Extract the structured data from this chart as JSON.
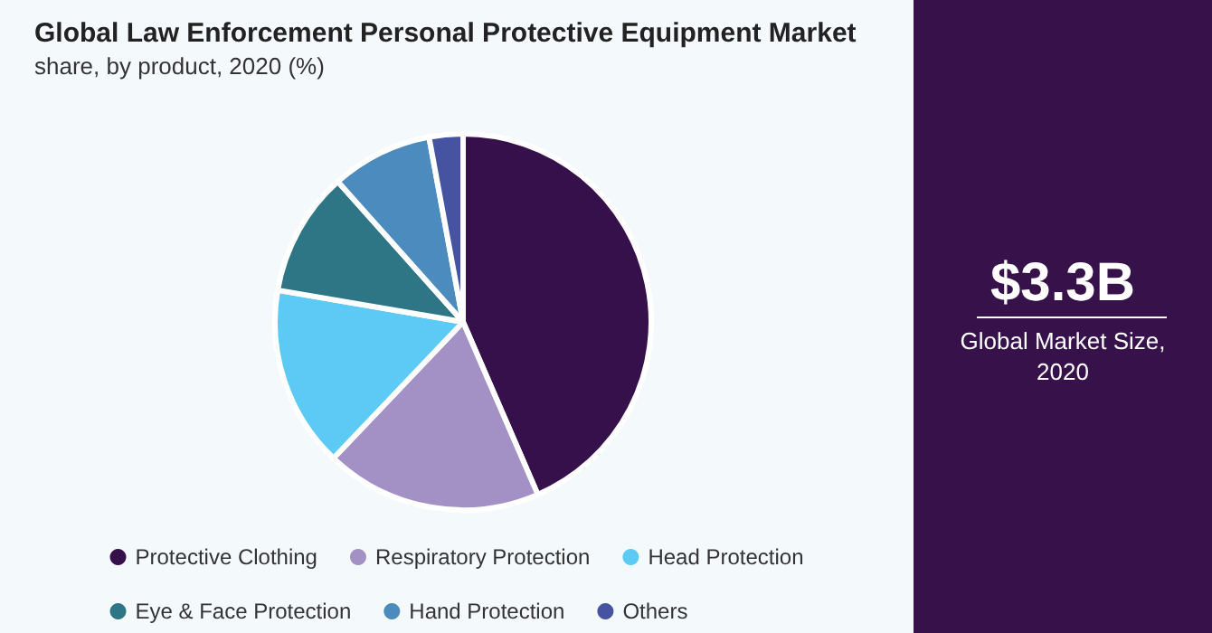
{
  "chart_data": {
    "type": "pie",
    "title": "Global Law Enforcement Personal Protective Equipment Market",
    "subtitle": "share, by product, 2020 (%)",
    "categories": [
      "Protective Clothing",
      "Respiratory Protection",
      "Head Protection",
      "Eye & Face Protection",
      "Hand Protection",
      "Others"
    ],
    "values": [
      43.5,
      18.6,
      15.6,
      10.7,
      8.7,
      2.9
    ],
    "colors": [
      "#36104a",
      "#a391c5",
      "#5dcaf5",
      "#2e7686",
      "#4c8bbd",
      "#4553a0"
    ],
    "legend": "bottom",
    "annotations": [
      "$3.3B",
      "Global Market Size, 2020"
    ]
  }
}
